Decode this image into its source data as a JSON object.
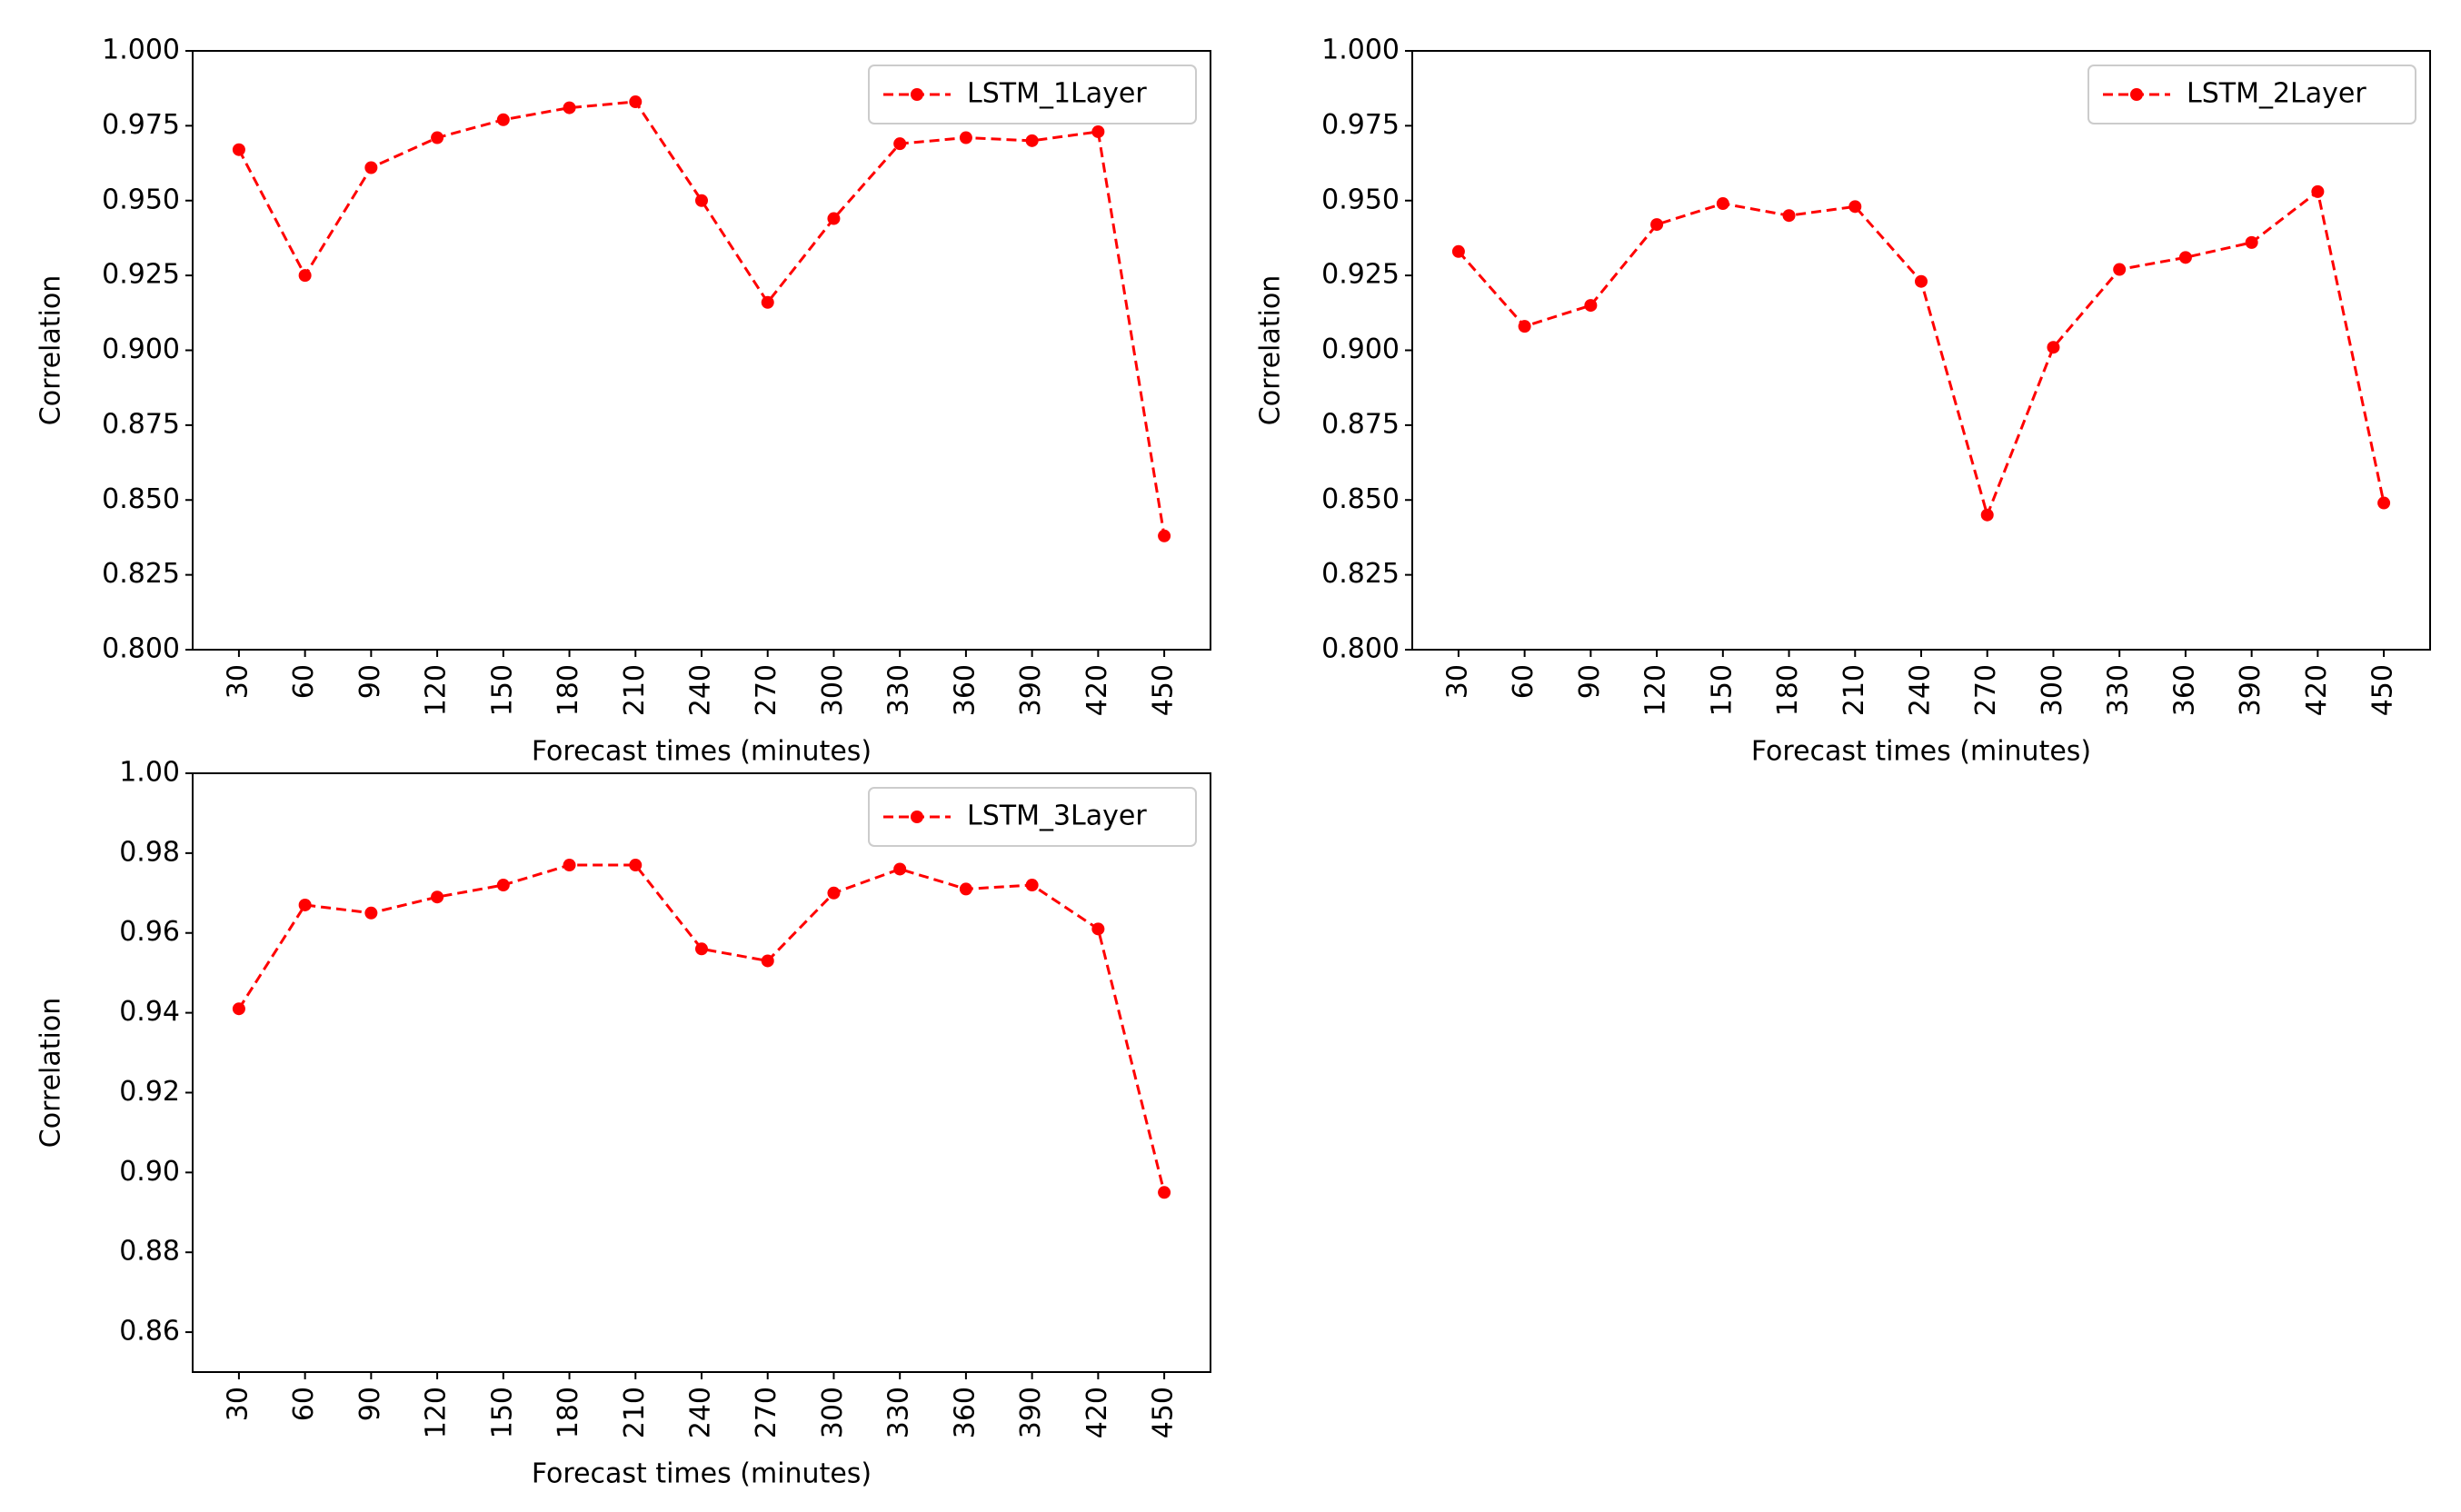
{
  "chart_data": [
    {
      "type": "line",
      "xlabel": "Forecast times (minutes)",
      "ylabel": "Correlation",
      "categories": [
        "30",
        "60",
        "90",
        "120",
        "150",
        "180",
        "210",
        "240",
        "270",
        "300",
        "330",
        "360",
        "390",
        "420",
        "450"
      ],
      "series": [
        {
          "name": "LSTM_1Layer",
          "color": "#ff0000",
          "values": [
            0.967,
            0.925,
            0.961,
            0.971,
            0.977,
            0.981,
            0.983,
            0.95,
            0.916,
            0.944,
            0.969,
            0.971,
            0.97,
            0.973,
            0.838
          ]
        }
      ],
      "ylim": [
        0.8,
        1.0
      ],
      "yticks": [
        {
          "value": 0.8,
          "label": "0.800"
        },
        0.825,
        {
          "value": 0.85,
          "label": "0.850"
        },
        0.875,
        {
          "value": 0.9,
          "label": "0.900"
        },
        0.925,
        {
          "value": 0.95,
          "label": "0.950"
        },
        0.975,
        {
          "value": 1.0,
          "label": "1.000"
        }
      ],
      "legend": "upper right"
    },
    {
      "type": "line",
      "xlabel": "Forecast times (minutes)",
      "ylabel": "Correlation",
      "categories": [
        "30",
        "60",
        "90",
        "120",
        "150",
        "180",
        "210",
        "240",
        "270",
        "300",
        "330",
        "360",
        "390",
        "420",
        "450"
      ],
      "series": [
        {
          "name": "LSTM_2Layer",
          "color": "#ff0000",
          "values": [
            0.933,
            0.908,
            0.915,
            0.942,
            0.949,
            0.945,
            0.948,
            0.923,
            0.845,
            0.901,
            0.927,
            0.931,
            0.936,
            0.953,
            0.849
          ]
        }
      ],
      "ylim": [
        0.8,
        1.0
      ],
      "yticks": [
        {
          "value": 0.8,
          "label": "0.800"
        },
        0.825,
        {
          "value": 0.85,
          "label": "0.850"
        },
        0.875,
        {
          "value": 0.9,
          "label": "0.900"
        },
        0.925,
        {
          "value": 0.95,
          "label": "0.950"
        },
        0.975,
        {
          "value": 1.0,
          "label": "1.000"
        }
      ],
      "legend": "upper right"
    },
    {
      "type": "line",
      "xlabel": "Forecast times (minutes)",
      "ylabel": "Correlation",
      "categories": [
        "30",
        "60",
        "90",
        "120",
        "150",
        "180",
        "210",
        "240",
        "270",
        "300",
        "330",
        "360",
        "390",
        "420",
        "450"
      ],
      "series": [
        {
          "name": "LSTM_3Layer",
          "color": "#ff0000",
          "values": [
            0.941,
            0.967,
            0.965,
            0.969,
            0.972,
            0.977,
            0.977,
            0.956,
            0.953,
            0.97,
            0.976,
            0.971,
            0.972,
            0.961,
            0.895
          ]
        }
      ],
      "ylim": [
        0.85,
        1.0
      ],
      "yticks": [
        0.86,
        0.88,
        {
          "value": 0.9,
          "label": "0.90"
        },
        0.92,
        0.94,
        0.96,
        0.98,
        {
          "value": 1.0,
          "label": "1.00"
        }
      ],
      "legend": "upper right"
    }
  ]
}
